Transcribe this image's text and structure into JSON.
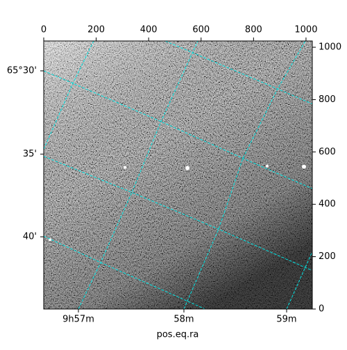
{
  "chart_data": {
    "type": "image",
    "xlabel": "pos.eq.ra",
    "xlim": [
      0,
      1024
    ],
    "xticks": [
      0,
      200,
      400,
      600,
      800,
      1000
    ],
    "ylim": [
      0,
      1024
    ],
    "yticks": [
      0,
      200,
      400,
      600,
      800,
      1000
    ],
    "ra_tick_labels": [
      "9h57m",
      "58m",
      "59m"
    ],
    "dec_tick_labels": [
      "65°30'",
      "35'",
      "40'"
    ],
    "grid_color": "#00e5e5"
  }
}
